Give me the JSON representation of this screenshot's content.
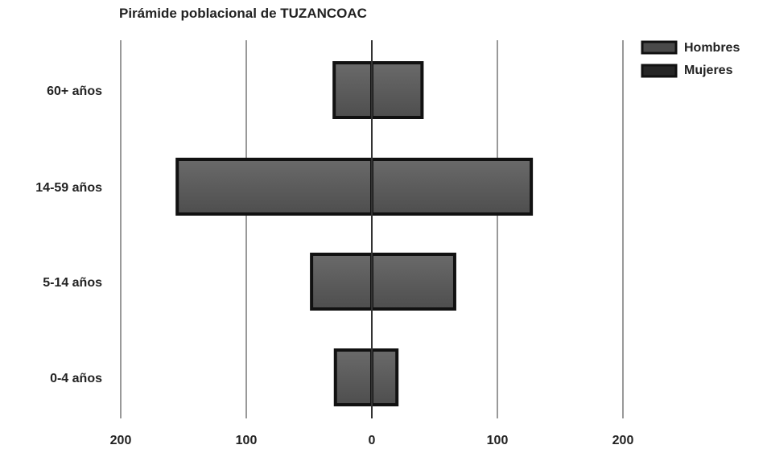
{
  "chart_data": {
    "type": "bar",
    "orientation": "horizontal",
    "title": "Pirámide poblacional de TUZANCOAC",
    "categories": [
      "60+ años",
      "14-59 años",
      "5-14 años",
      "0-4 años"
    ],
    "series": [
      {
        "name": "Hombres",
        "values": [
          -30,
          -155,
          -48,
          -29
        ],
        "color": "#555555"
      },
      {
        "name": "Mujeres",
        "values": [
          40,
          127,
          66,
          20
        ],
        "color": "#555555"
      }
    ],
    "xlim": [
      -200,
      200
    ],
    "xticks": [
      -200,
      -100,
      0,
      100,
      200
    ],
    "xtick_labels": [
      "200",
      "100",
      "0",
      "100",
      "200"
    ],
    "grid": true,
    "legend_position": "top-right",
    "legend_colors": [
      "#4a4a4a",
      "#262626"
    ]
  }
}
